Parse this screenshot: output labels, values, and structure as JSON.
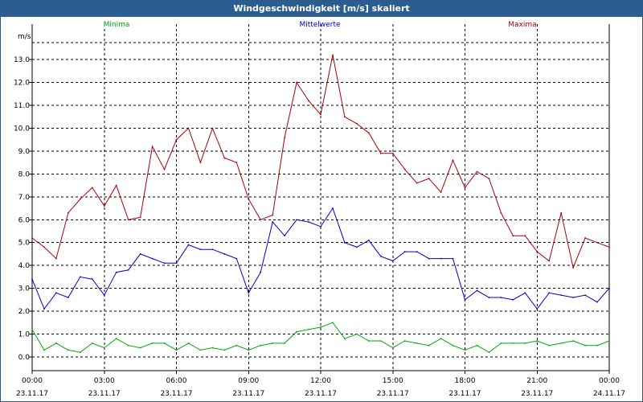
{
  "window": {
    "title": "Windgeschwindigkeit [m/s] skaliert"
  },
  "legend": [
    {
      "name": "Minima",
      "color": "#00aa00"
    },
    {
      "name": "Mittelwerte",
      "color": "#0000cc"
    },
    {
      "name": "Maxima",
      "color": "#aa0000"
    }
  ],
  "chart_data": {
    "type": "line",
    "title": "Windgeschwindigkeit [m/s] skaliert",
    "ylabel": "m/s",
    "ylim": [
      -0.6,
      14.2
    ],
    "yticks": [
      0.0,
      1.0,
      2.0,
      3.0,
      4.0,
      5.0,
      6.0,
      7.0,
      8.0,
      9.0,
      10.0,
      11.0,
      12.0,
      13.0
    ],
    "yticklabels": [
      "0.0",
      "1.0",
      "2.0",
      "3.0",
      "4.0",
      "5.0",
      "6.0",
      "7.0",
      "8.0",
      "9.0",
      "10.0",
      "11.0",
      "12.0",
      "13.0"
    ],
    "xlim_hours": [
      0,
      24
    ],
    "xticks": [
      {
        "hour": 0,
        "time": "00:00",
        "date": "23.11.17"
      },
      {
        "hour": 3,
        "time": "03:00",
        "date": "23.11.17"
      },
      {
        "hour": 6,
        "time": "06:00",
        "date": "23.11.17"
      },
      {
        "hour": 9,
        "time": "09:00",
        "date": "23.11.17"
      },
      {
        "hour": 12,
        "time": "12:00",
        "date": "23.11.17"
      },
      {
        "hour": 15,
        "time": "15:00",
        "date": "23.11.17"
      },
      {
        "hour": 18,
        "time": "18:00",
        "date": "23.11.17"
      },
      {
        "hour": 21,
        "time": "21:00",
        "date": "23.11.17"
      },
      {
        "hour": 24,
        "time": "00:00",
        "date": "24.11.17"
      }
    ],
    "grid": true,
    "x_hours": [
      0,
      0.5,
      1,
      1.5,
      2,
      2.5,
      3,
      3.5,
      4,
      4.5,
      5,
      5.5,
      6,
      6.5,
      7,
      7.5,
      8,
      8.5,
      9,
      9.5,
      10,
      10.5,
      11,
      11.5,
      12,
      12.5,
      13,
      13.5,
      14,
      14.5,
      15,
      15.5,
      16,
      16.5,
      17,
      17.5,
      18,
      18.5,
      19,
      19.5,
      20,
      20.5,
      21,
      21.5,
      22,
      22.5,
      23,
      23.5,
      24
    ],
    "series": [
      {
        "name": "Maxima",
        "color": "#aa0000",
        "values": [
          5.2,
          4.8,
          4.3,
          6.3,
          6.9,
          7.4,
          6.6,
          7.5,
          6.0,
          6.1,
          9.2,
          8.2,
          9.5,
          10.0,
          8.5,
          10.0,
          8.7,
          8.5,
          6.9,
          6.0,
          6.2,
          9.6,
          12.0,
          11.2,
          10.6,
          13.2,
          10.5,
          10.2,
          9.8,
          8.9,
          8.9,
          8.2,
          7.6,
          7.8,
          7.2,
          8.6,
          7.4,
          8.1,
          7.8,
          6.3,
          5.3,
          5.3,
          4.6,
          4.2,
          6.3,
          3.9,
          5.2,
          5.0,
          4.8
        ]
      },
      {
        "name": "Mittelwerte",
        "color": "#0000cc",
        "values": [
          3.4,
          2.1,
          2.8,
          2.6,
          3.5,
          3.4,
          2.7,
          3.7,
          3.8,
          4.5,
          4.3,
          4.1,
          4.1,
          4.9,
          4.7,
          4.7,
          4.5,
          4.3,
          2.8,
          3.7,
          5.9,
          5.3,
          6.0,
          5.9,
          5.7,
          6.5,
          5.0,
          4.8,
          5.1,
          4.4,
          4.2,
          4.6,
          4.6,
          4.3,
          4.3,
          4.3,
          2.5,
          2.9,
          2.6,
          2.6,
          2.5,
          2.8,
          2.1,
          2.8,
          2.7,
          2.6,
          2.7,
          2.4,
          3.0
        ]
      },
      {
        "name": "Minima",
        "color": "#00aa00",
        "values": [
          1.2,
          0.3,
          0.6,
          0.3,
          0.2,
          0.6,
          0.4,
          0.8,
          0.5,
          0.4,
          0.6,
          0.6,
          0.3,
          0.6,
          0.3,
          0.4,
          0.3,
          0.5,
          0.3,
          0.5,
          0.6,
          0.6,
          1.1,
          1.2,
          1.3,
          1.5,
          0.8,
          1.0,
          0.7,
          0.7,
          0.4,
          0.7,
          0.6,
          0.5,
          0.8,
          0.5,
          0.3,
          0.5,
          0.2,
          0.6,
          0.6,
          0.6,
          0.7,
          0.5,
          0.6,
          0.7,
          0.5,
          0.5,
          0.7
        ]
      }
    ]
  }
}
